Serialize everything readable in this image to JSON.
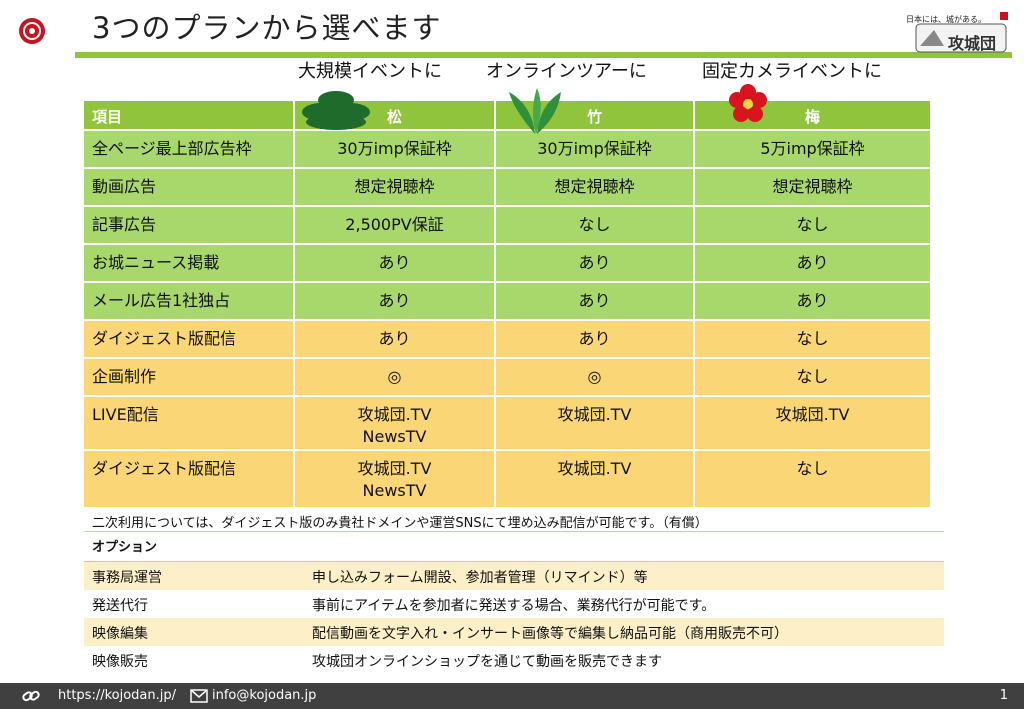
{
  "header": {
    "title": "3つのプランから選べます",
    "brand_slogan": "日本には、城がある。",
    "brand_name": "攻城団"
  },
  "plan_captions": [
    "大規模イベントに",
    "オンラインツアーに",
    "固定カメライベントに"
  ],
  "table": {
    "headers": [
      "項目",
      "松",
      "竹",
      "梅"
    ],
    "rows": [
      {
        "label": "全ページ最上部広告枠",
        "matsu": "30万imp保証枠",
        "take": "30万imp保証枠",
        "ume": "5万imp保証枠"
      },
      {
        "label": "動画広告",
        "matsu": "想定視聴枠",
        "take": "想定視聴枠",
        "ume": "想定視聴枠"
      },
      {
        "label": "記事広告",
        "matsu": "2,500PV保証",
        "take": "なし",
        "ume": "なし"
      },
      {
        "label": "お城ニュース掲載",
        "matsu": "あり",
        "take": "あり",
        "ume": "あり"
      },
      {
        "label": "メール広告1社独占",
        "matsu": "あり",
        "take": "あり",
        "ume": "あり"
      },
      {
        "label": "ダイジェスト版配信",
        "matsu": "あり",
        "take": "あり",
        "ume": "なし"
      },
      {
        "label": "企画制作",
        "matsu": "◎",
        "take": "◎",
        "ume": "なし"
      },
      {
        "label": "LIVE配信",
        "matsu": "攻城団.TV\nNewsTV",
        "take": "攻城団.TV",
        "ume": "攻城団.TV"
      },
      {
        "label": "ダイジェスト版配信",
        "matsu": "攻城団.TV\nNewsTV",
        "take": "攻城団.TV",
        "ume": "なし"
      }
    ]
  },
  "note": "二次利用については、ダイジェスト版のみ貴社ドメインや運営SNSにて埋め込み配信が可能です。（有償）",
  "options": {
    "heading": "オプション",
    "items": [
      {
        "name": "事務局運営",
        "desc": "申し込みフォーム開設、参加者管理（リマインド）等"
      },
      {
        "name": "発送代行",
        "desc": "事前にアイテムを参加者に発送する場合、業務代行が可能です。"
      },
      {
        "name": "映像編集",
        "desc": "配信動画を文字入れ・インサート画像等で編集し納品可能（商用販売不可）"
      },
      {
        "name": "映像販売",
        "desc": "攻城団オンラインショップを通じて動画を販売できます"
      }
    ]
  },
  "footer": {
    "url": "https://kojodan.jp/",
    "email": "info@kojodan.jp",
    "page_number": "1"
  },
  "colors": {
    "accent_green": "#8fc43c",
    "row_green": "#a8d86b",
    "row_yellow": "#fbd676",
    "footer_bg": "#404040"
  }
}
